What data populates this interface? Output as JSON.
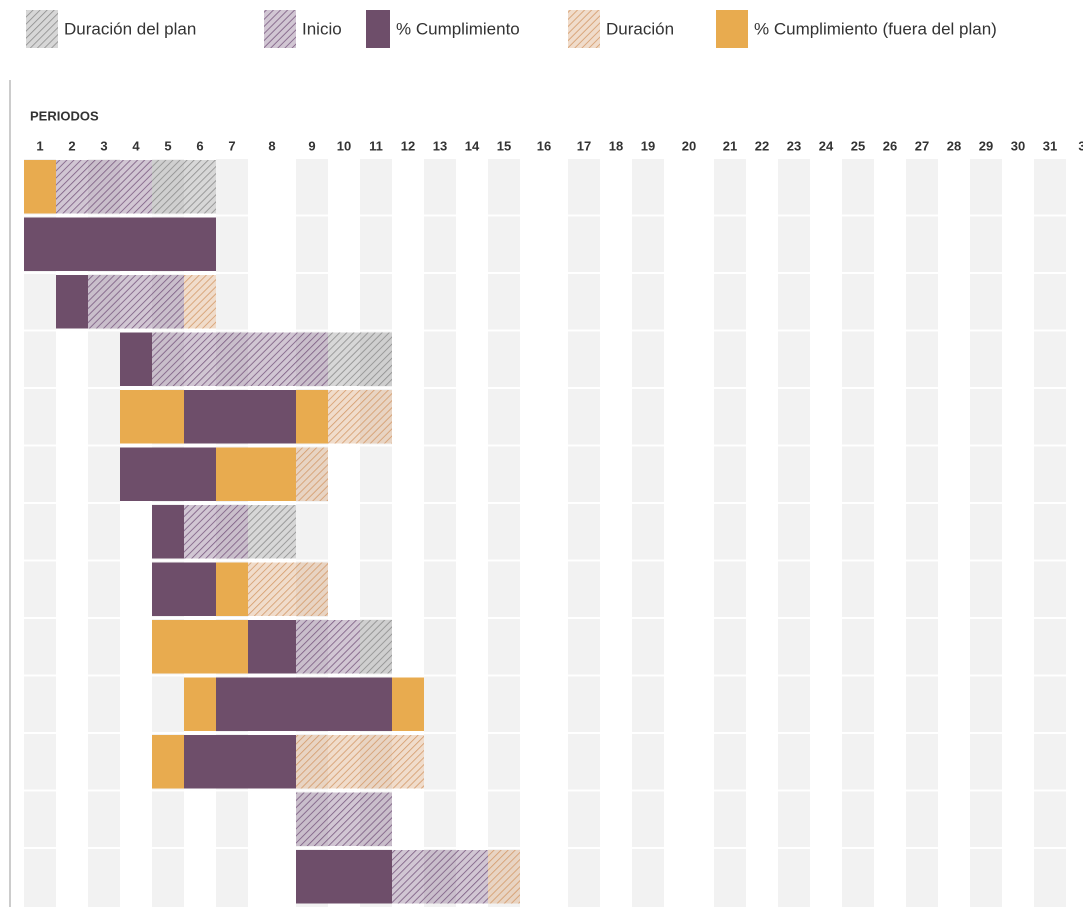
{
  "legend": [
    {
      "label": "Duración del plan",
      "color": "#8c8c8c",
      "hatched": true
    },
    {
      "label": "Inicio",
      "color": "#7a5a80",
      "hatched": true
    },
    {
      "label": "% Cumplimiento",
      "color": "#6e4e6a",
      "hatched": false
    },
    {
      "label": "Duración",
      "color": "#d49a6a",
      "hatched": true
    },
    {
      "label": "% Cumplimiento (fuera del plan)",
      "color": "#e8ab4f",
      "hatched": false
    }
  ],
  "header": "PERIODOS",
  "periods": [
    "1",
    "2",
    "3",
    "4",
    "5",
    "6",
    "7",
    "8",
    "9",
    "10",
    "11",
    "12",
    "13",
    "14",
    "15",
    "16",
    "17",
    "18",
    "19",
    "20",
    "21",
    "22",
    "23",
    "24",
    "25",
    "26",
    "27",
    "28",
    "29",
    "30",
    "31",
    "3"
  ],
  "rows": [
    [
      4,
      1,
      1,
      1,
      0,
      0
    ],
    [
      2,
      2,
      2,
      2,
      2,
      2
    ],
    [
      null,
      2,
      1,
      1,
      1,
      3
    ],
    [
      null,
      null,
      null,
      2,
      1,
      1,
      1,
      1,
      1,
      0,
      0
    ],
    [
      null,
      null,
      null,
      4,
      4,
      2,
      2,
      2,
      4,
      3,
      3
    ],
    [
      null,
      null,
      null,
      2,
      2,
      2,
      4,
      4,
      3
    ],
    [
      null,
      null,
      null,
      null,
      2,
      1,
      1,
      0
    ],
    [
      null,
      null,
      null,
      null,
      2,
      2,
      4,
      3,
      3
    ],
    [
      null,
      null,
      null,
      null,
      4,
      4,
      4,
      2,
      1,
      1,
      0
    ],
    [
      null,
      null,
      null,
      null,
      null,
      4,
      2,
      2,
      2,
      2,
      2,
      4
    ],
    [
      null,
      null,
      null,
      null,
      4,
      2,
      2,
      2,
      3,
      3,
      3,
      3
    ],
    [
      null,
      null,
      null,
      null,
      null,
      null,
      null,
      null,
      1,
      1,
      1
    ],
    [
      null,
      null,
      null,
      null,
      null,
      null,
      null,
      null,
      2,
      2,
      2,
      1,
      1,
      1,
      3
    ]
  ]
}
